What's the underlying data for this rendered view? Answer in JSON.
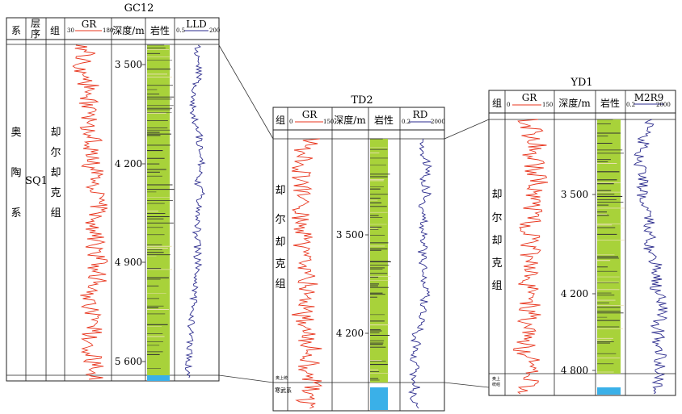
{
  "wells": [
    {
      "title": "GC12",
      "headers": {
        "col1": "系",
        "col2_line1": "层",
        "col2_line2": "序",
        "col3": "组",
        "gr": "GR",
        "gr_min": "30",
        "gr_max": "180",
        "depth": "深度/m",
        "lith": "岩性",
        "res": "LLD",
        "res_min": "0.5",
        "res_max": "200"
      },
      "system_chars": [
        "奥",
        "陶",
        "系"
      ],
      "sequence": "SQ1",
      "formation_chars": [
        "却",
        "尔",
        "却",
        "克",
        "组"
      ],
      "depth_ticks": [
        "3 500",
        "4 200",
        "4 900",
        "5 600"
      ]
    },
    {
      "title": "TD2",
      "headers": {
        "col3": "组",
        "gr": "GR",
        "gr_min": "0",
        "gr_max": "150",
        "depth": "深度/m",
        "lith": "岩性",
        "res": "RD",
        "res_min": "0.2",
        "res_max": "2000"
      },
      "formation_chars": [
        "却",
        "尔",
        "却",
        "克",
        "组"
      ],
      "depth_ticks": [
        "3 500",
        "4 200"
      ],
      "bottom_label_1": "奥上统",
      "bottom_label_2": "寒武系"
    },
    {
      "title": "YD1",
      "headers": {
        "col3": "组",
        "gr": "GR",
        "gr_min": "0",
        "gr_max": "150",
        "depth": "深度/m",
        "lith": "岩性",
        "res": "M2R9",
        "res_min": "0.2",
        "res_max": "2000"
      },
      "formation_chars": [
        "却",
        "尔",
        "却",
        "克",
        "组"
      ],
      "depth_ticks": [
        "3 500",
        "4 200",
        "4 800"
      ],
      "bottom_label_1": "奥上",
      "bottom_label_2": "统组"
    }
  ],
  "colors": {
    "gr_curve": "#e8341c",
    "res_curve": "#2a2a8c",
    "lith_fill": "#a8d23a",
    "lith_band": "#333333",
    "lith_light": "#e8e0b0",
    "base_blue": "#3ab0e8",
    "frame": "#222222"
  }
}
